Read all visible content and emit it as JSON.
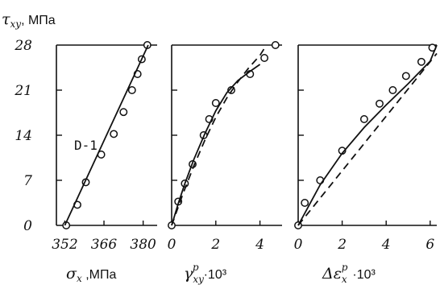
{
  "chart_data": [
    {
      "type": "scatter",
      "ylabel": "τxy, МПа",
      "xlabel": "σx, МПа",
      "annotation": "D-1",
      "x_ticks": [
        "352",
        "366",
        "380"
      ],
      "y_ticks": [
        "0",
        "7",
        "14",
        "21",
        "28"
      ],
      "xlim": [
        349,
        385
      ],
      "ylim": [
        0,
        28
      ],
      "series": [
        {
          "kind": "points",
          "x": [
            352.5,
            356.5,
            359.5,
            365.0,
            369.5,
            373.0,
            376.0,
            378.0,
            379.5,
            381.5
          ],
          "y": [
            0,
            3.2,
            6.7,
            11.0,
            14.2,
            17.6,
            21.0,
            23.5,
            25.8,
            28.0
          ]
        },
        {
          "kind": "line",
          "style": "solid",
          "x": [
            352.0,
            381.8
          ],
          "y": [
            0,
            28.0
          ]
        }
      ]
    },
    {
      "type": "scatter",
      "xlabel": "γxyp·10³",
      "x_ticks": [
        "0",
        "2",
        "4"
      ],
      "xlim": [
        0,
        5.0
      ],
      "ylim": [
        0,
        28
      ],
      "series": [
        {
          "kind": "points",
          "x": [
            0.0,
            0.3,
            0.6,
            0.95,
            1.45,
            1.7,
            2.0,
            2.7,
            3.55,
            4.2,
            4.7
          ],
          "y": [
            0,
            3.7,
            6.5,
            9.5,
            14.0,
            16.5,
            19.0,
            21.0,
            23.5,
            26.0,
            28.0
          ]
        },
        {
          "kind": "line",
          "style": "solid",
          "x": [
            0.0,
            0.3,
            0.6,
            1.0,
            1.5,
            2.0,
            2.5,
            3.0,
            3.5,
            4.0
          ],
          "y": [
            0,
            3.4,
            6.5,
            10.2,
            14.2,
            17.8,
            20.6,
            22.5,
            23.8,
            25.0
          ]
        },
        {
          "kind": "line",
          "style": "dashed",
          "x": [
            0.0,
            0.5,
            1.0,
            1.5,
            2.0,
            2.5,
            3.0,
            3.5,
            4.0,
            4.2
          ],
          "y": [
            0,
            4.8,
            9.2,
            13.2,
            16.8,
            19.8,
            22.3,
            24.5,
            26.4,
            27.5
          ]
        }
      ]
    },
    {
      "type": "scatter",
      "xlabel": "Δεxp·10³",
      "x_ticks": [
        "0",
        "2",
        "4",
        "6"
      ],
      "xlim": [
        0,
        6.3
      ],
      "ylim": [
        0,
        28
      ],
      "series": [
        {
          "kind": "points",
          "x": [
            0.0,
            0.3,
            1.0,
            2.0,
            3.0,
            3.7,
            4.3,
            4.9,
            5.6,
            6.1
          ],
          "y": [
            0,
            3.5,
            7.0,
            11.6,
            16.5,
            18.9,
            21.0,
            23.2,
            25.4,
            27.6
          ]
        },
        {
          "kind": "line",
          "style": "solid",
          "x": [
            0.0,
            1.0,
            2.0,
            3.0,
            4.0,
            5.0,
            6.0,
            6.3
          ],
          "y": [
            0,
            6.3,
            11.2,
            15.2,
            18.7,
            22.0,
            25.5,
            28.0
          ]
        },
        {
          "kind": "line",
          "style": "dashed",
          "x": [
            0.0,
            6.3
          ],
          "y": [
            0,
            26.7
          ]
        }
      ]
    }
  ]
}
